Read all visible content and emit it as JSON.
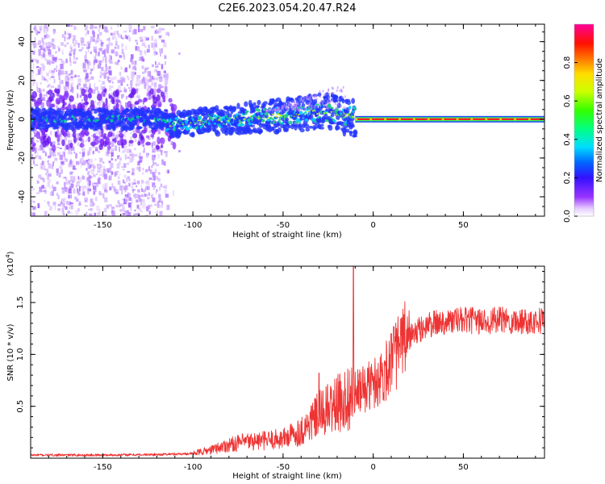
{
  "title": "C2E6.2023.054.20.47.R24",
  "colors": {
    "snr_line": "#ee3333",
    "axis": "#000000",
    "spectrum_ridge": "#ff2222",
    "spectrum_core": "#22cc88",
    "spectrum_mid": "#2233ff",
    "spectrum_faint": "#cc99ff"
  },
  "chart_data": [
    {
      "type": "heatmap",
      "xlabel": "Height of straight line (km)",
      "ylabel": "Frequency (Hz)",
      "xlim": [
        -190,
        95
      ],
      "ylim": [
        -50,
        49
      ],
      "xticks": [
        -150,
        -100,
        -50,
        0,
        50
      ],
      "xtick_labels": [
        "-150",
        "-100",
        "-50",
        "0",
        "50"
      ],
      "yticks": [
        -40,
        -20,
        0,
        20,
        40
      ],
      "ytick_labels": [
        "-40",
        "-20",
        "0",
        "20",
        "40"
      ],
      "colorbar": {
        "label": "Normalized spectral amplitude",
        "range": [
          0,
          1
        ],
        "ticks": [
          0.0,
          0.2,
          0.4,
          0.6,
          0.8
        ],
        "tick_labels": [
          "0.0",
          "0.2",
          "0.4",
          "0.6",
          "0.8"
        ],
        "colormap": "rainbow (white-violet-blue-cyan-green-yellow-orange-red-magenta)"
      },
      "features": [
        {
          "name": "diffuse scatter",
          "x_range": [
            -190,
            -115
          ],
          "freq_range": [
            -50,
            49
          ],
          "amplitude": 0.05
        },
        {
          "name": "broadened band",
          "x_range": [
            -115,
            -10
          ],
          "center_freq": [
            [
              -115,
              -3
            ],
            [
              -80,
              0
            ],
            [
              -50,
              2
            ],
            [
              -25,
              4
            ],
            [
              -10,
              1
            ]
          ],
          "half_width_hz": [
            6,
            8
          ],
          "amplitude": 0.4
        },
        {
          "name": "narrow carrier line",
          "x_range": [
            -10,
            95
          ],
          "center_freq": 0,
          "half_width_hz": 1,
          "amplitude": 0.9
        }
      ],
      "grid": false
    },
    {
      "type": "line",
      "xlabel": "Height of straight line (km)",
      "ylabel": "SNR (10 * v/v)",
      "multiplier_label": "(x10",
      "multiplier_exponent": "4",
      "multiplier_close": ")",
      "xlim": [
        -190,
        95
      ],
      "ylim": [
        0,
        18500
      ],
      "xticks": [
        -150,
        -100,
        -50,
        0,
        50
      ],
      "xtick_labels": [
        "-150",
        "-100",
        "-50",
        "0",
        "50"
      ],
      "yticks": [
        5000,
        10000,
        15000
      ],
      "ytick_labels": [
        "0.5",
        "1.0",
        "1.5"
      ],
      "trend": {
        "x": [
          -190,
          -150,
          -120,
          -100,
          -90,
          -80,
          -70,
          -60,
          -50,
          -40,
          -30,
          -20,
          -10,
          0,
          5,
          10,
          15,
          20,
          30,
          40,
          50,
          60,
          70,
          80,
          90,
          95
        ],
        "y": [
          300,
          300,
          350,
          450,
          800,
          1300,
          1600,
          1700,
          1900,
          2600,
          4200,
          5200,
          6200,
          7200,
          8000,
          9300,
          10700,
          11700,
          12800,
          13200,
          13300,
          13200,
          13300,
          13200,
          13300,
          13300
        ]
      },
      "spikes": [
        {
          "x": -11,
          "y": 18500
        },
        {
          "x": 10,
          "y": 12000
        },
        {
          "x": -30,
          "y": 8200
        }
      ],
      "grid": false
    }
  ]
}
